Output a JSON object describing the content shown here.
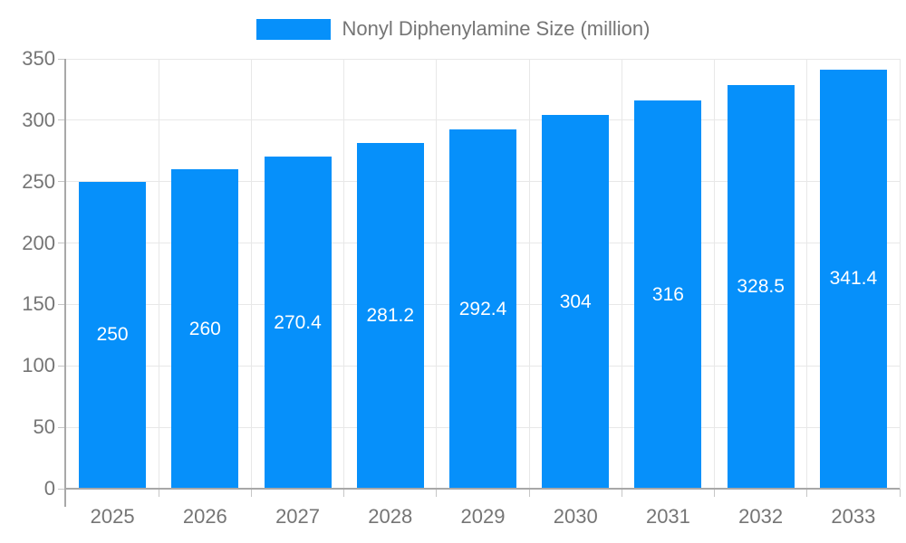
{
  "chart_data": {
    "type": "bar",
    "title": "",
    "legend": "Nonyl Diphenylamine Size (million)",
    "categories": [
      "2025",
      "2026",
      "2027",
      "2028",
      "2029",
      "2030",
      "2031",
      "2032",
      "2033"
    ],
    "values": [
      250,
      260,
      270.4,
      281.2,
      292.4,
      304,
      316,
      328.5,
      341.4
    ],
    "value_labels": [
      "250",
      "260",
      "270.4",
      "281.2",
      "292.4",
      "304",
      "316",
      "328.5",
      "341.4"
    ],
    "xlabel": "",
    "ylabel": "",
    "ylim": [
      0,
      350
    ],
    "ytick_step": 50,
    "yticks": [
      0,
      50,
      100,
      150,
      200,
      250,
      300,
      350
    ],
    "grid": true,
    "legend_position": "top-center",
    "colors": {
      "bar": "#0690fa",
      "grid": "#e8e8e8",
      "axis": "#a8a8a8",
      "tick": "#c6c6c6",
      "axis_text": "#757575",
      "bar_label_text": "#ffffff",
      "background": "#ffffff"
    }
  }
}
